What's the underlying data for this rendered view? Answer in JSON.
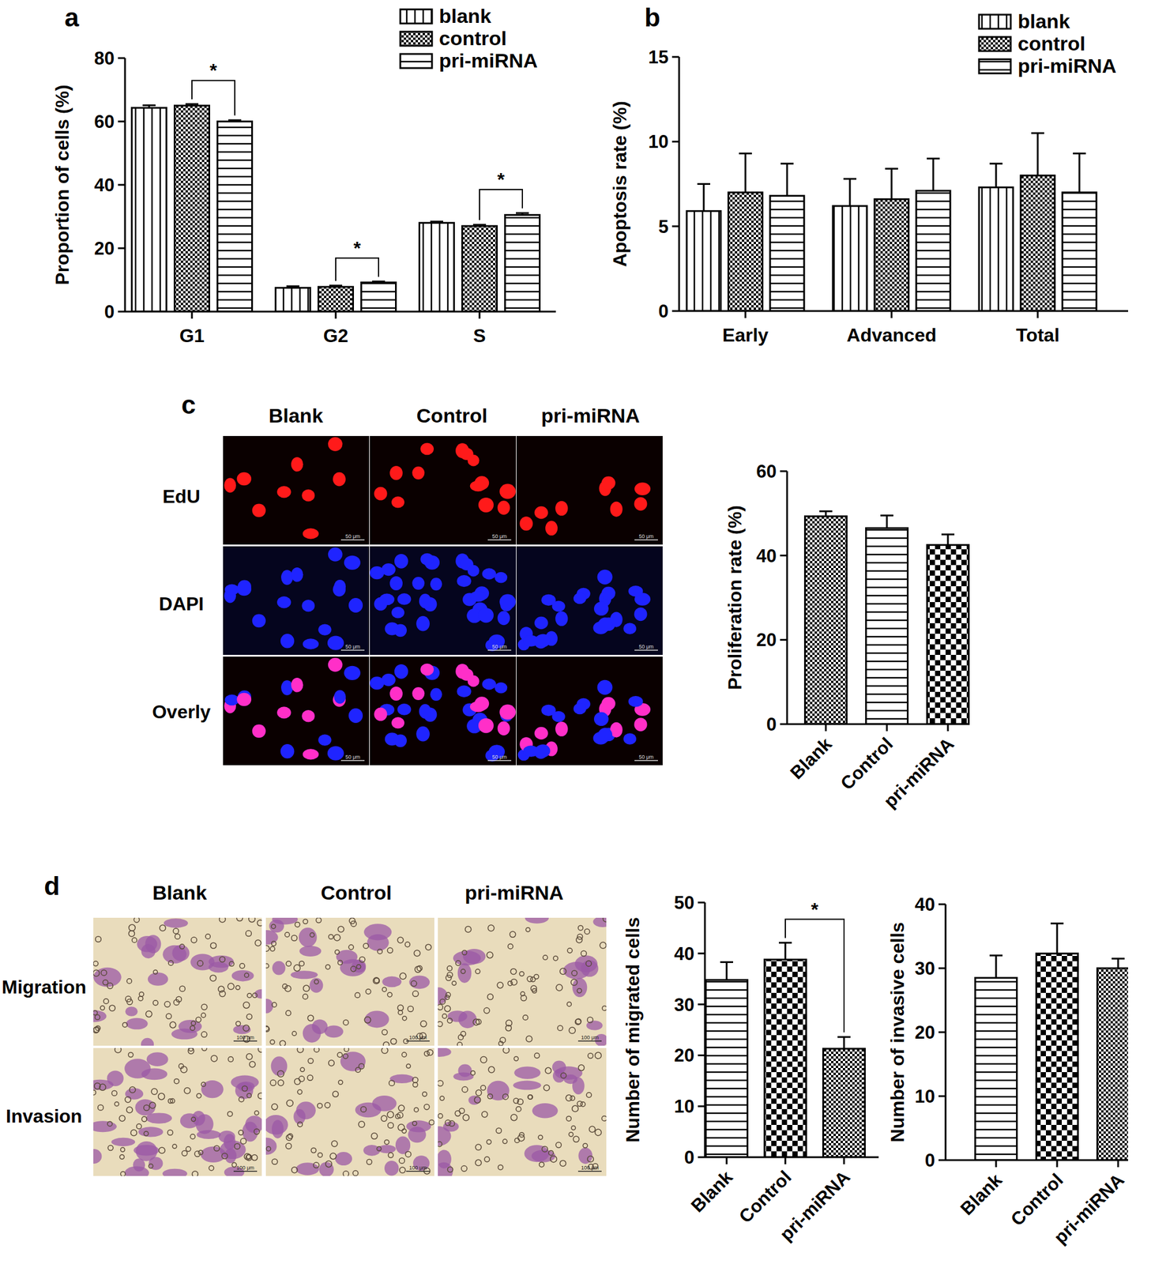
{
  "panel_labels": [
    "a",
    "b",
    "c",
    "d"
  ],
  "image_panels": [
    {
      "columns": [
        "Blank",
        "Control",
        "pri-miRNA"
      ],
      "rows": [
        "EdU",
        "DAPI",
        "Overly"
      ],
      "scale_bar": "50 μm"
    },
    {
      "columns": [
        "Blank",
        "Control",
        "pri-miRNA"
      ],
      "rows": [
        "Migration",
        "Invasion"
      ],
      "scale_bar": "100 μm"
    }
  ],
  "chart_data": [
    {
      "type": "bar",
      "y_label": "Proportion of cells (%)",
      "categories": [
        "G1",
        "G2",
        "S"
      ],
      "series": [
        {
          "name": "blank",
          "color": "#000000",
          "values": [
            64.3,
            7.5,
            28.0
          ],
          "errors": [
            0.8,
            0.5,
            0.4
          ]
        },
        {
          "name": "control",
          "color": "#000000",
          "values": [
            65.0,
            7.8,
            27.0
          ],
          "errors": [
            0.5,
            0.4,
            0.4
          ]
        },
        {
          "name": "pri-miRNA",
          "color": "#000000",
          "values": [
            60.0,
            9.2,
            30.5
          ],
          "errors": [
            0.4,
            0.3,
            0.6
          ]
        }
      ],
      "ylim": [
        0,
        80
      ],
      "yticks": [
        0,
        20,
        40,
        60,
        80
      ],
      "legend": "upper right",
      "annotations": [
        {
          "text": "*",
          "category": 0,
          "from": 1,
          "to": 2
        },
        {
          "text": "*",
          "category": 1,
          "from": 1,
          "to": 2
        },
        {
          "text": "*",
          "category": 2,
          "from": 1,
          "to": 2
        }
      ]
    },
    {
      "type": "bar",
      "y_label": "Apoptosis rate (%)",
      "categories": [
        "Early",
        "Advanced",
        "Total"
      ],
      "series": [
        {
          "name": "blank",
          "color": "#000000",
          "values": [
            5.9,
            6.2,
            7.3
          ],
          "errors": [
            1.6,
            1.6,
            1.4
          ]
        },
        {
          "name": "control",
          "color": "#000000",
          "values": [
            7.0,
            6.6,
            8.0
          ],
          "errors": [
            2.3,
            1.8,
            2.5
          ]
        },
        {
          "name": "pri-miRNA",
          "color": "#000000",
          "values": [
            6.8,
            7.1,
            7.0
          ],
          "errors": [
            1.9,
            1.9,
            2.3
          ]
        }
      ],
      "ylim": [
        0,
        15
      ],
      "yticks": [
        0,
        5,
        10,
        15
      ],
      "legend": "upper right"
    },
    {
      "type": "bar",
      "y_label": "Proliferation rate (%)",
      "categories": [
        "Blank",
        "Control",
        "pri-miRNA"
      ],
      "values": [
        49.3,
        46.5,
        42.5
      ],
      "errors": [
        1.2,
        3.0,
        2.5
      ],
      "color": "#000000",
      "ylim": [
        0,
        60
      ],
      "yticks": [
        0,
        20,
        40,
        60
      ]
    },
    {
      "type": "bar",
      "y_label": "Number of migrated cells",
      "categories": [
        "Blank",
        "Control",
        "pri-miRNA"
      ],
      "values": [
        34.8,
        38.8,
        21.3
      ],
      "errors": [
        3.5,
        3.3,
        2.3
      ],
      "color": "#000000",
      "ylim": [
        0,
        50
      ],
      "yticks": [
        0,
        10,
        20,
        30,
        40,
        50
      ],
      "annotations": [
        {
          "text": "*",
          "from": 1,
          "to": 2
        }
      ]
    },
    {
      "type": "bar",
      "y_label": "Number of invasive cells",
      "categories": [
        "Blank",
        "Control",
        "pri-miRNA"
      ],
      "values": [
        28.5,
        32.3,
        30.0
      ],
      "errors": [
        3.5,
        4.7,
        1.5
      ],
      "color": "#000000",
      "ylim": [
        0,
        40
      ],
      "yticks": [
        0,
        10,
        20,
        30,
        40
      ]
    }
  ]
}
